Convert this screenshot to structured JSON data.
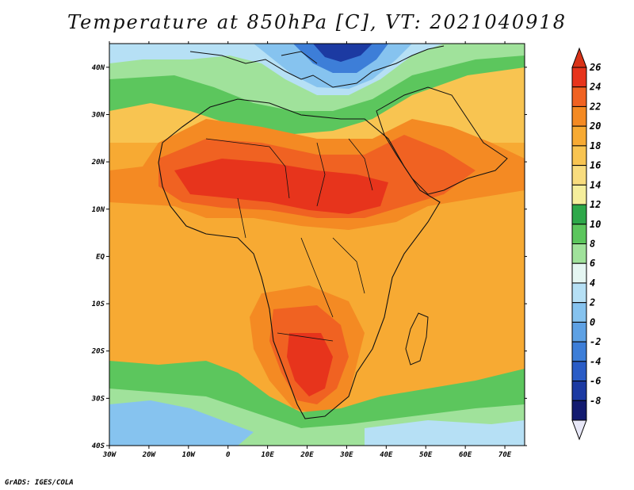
{
  "title": "Temperature at 850hPa [C], VT: 2021040918",
  "credit": "GrADS: IGES/COLA",
  "map": {
    "projection": "latlon",
    "lon_range": [
      -30,
      75
    ],
    "lat_range": [
      -40,
      45
    ],
    "lon_ticks": [
      "30W",
      "20W",
      "10W",
      "0",
      "10E",
      "20E",
      "30E",
      "40E",
      "50E",
      "60E",
      "70E"
    ],
    "lat_ticks": [
      "40N",
      "30N",
      "20N",
      "10N",
      "EQ",
      "10S",
      "20S",
      "30S",
      "40S"
    ],
    "field": "Temperature at 850hPa",
    "units": "C"
  },
  "colorbar": {
    "labels": [
      "26",
      "24",
      "22",
      "20",
      "18",
      "16",
      "14",
      "12",
      "10",
      "8",
      "6",
      "4",
      "2",
      "0",
      "-2",
      "-4",
      "-6",
      "-8"
    ],
    "colors": [
      "#e7341c",
      "#f06222",
      "#f48a23",
      "#f7aa33",
      "#f8c451",
      "#f8dc7e",
      "#f5ee9c",
      "#2ea84a",
      "#5cc65d",
      "#a0e29b",
      "#e5f6f2",
      "#b6e0f5",
      "#86c3ef",
      "#5ea1e4",
      "#3d7ed8",
      "#2a5cc6",
      "#1c3aa2",
      "#131b70",
      "#e7e7f7"
    ],
    "top_arrow": "#d93318",
    "bottom_arrow": "#e7e7f7"
  }
}
